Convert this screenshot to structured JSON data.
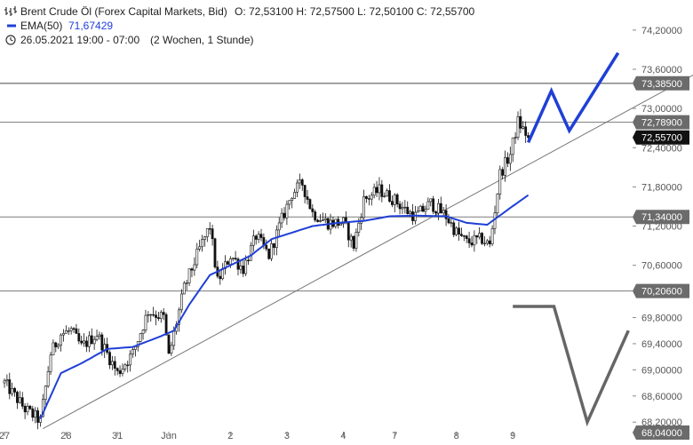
{
  "header": {
    "instrument": "Brent Crude Öl (Forex Capital Markets, Bid)",
    "ohlc": "O: 72,53100   H: 72,57500   L: 72,50100   C: 72,55700",
    "ema_label": "EMA(50)",
    "ema_value": "71,67429",
    "period": "26.05.2021 19:00 - 07:00",
    "interval": "(2 Wochen, 1 Stunde)"
  },
  "colors": {
    "ema": "#1f3fd6",
    "level_label": "#6b6b6b",
    "current_label": "#111111",
    "trendline": "#777777",
    "scenario_up": "#1f3fd6",
    "scenario_down": "#666666"
  },
  "chart_data": {
    "type": "candlestick",
    "title": "Brent Crude Öl (Forex Capital Markets, Bid)",
    "ylim": [
      68.04,
      74.3
    ],
    "y_ticks": [
      "74,20000",
      "73,60000",
      "73,00000",
      "72,40000",
      "71,80000",
      "71,20000",
      "70,60000",
      "69,80000",
      "69,40000",
      "69,00000",
      "68,60000",
      "68,20000"
    ],
    "y_tick_values": [
      74.2,
      73.6,
      73.0,
      72.4,
      71.8,
      71.2,
      70.6,
      69.8,
      69.4,
      69.0,
      68.6,
      68.2
    ],
    "x_ticks": [
      "27",
      "28",
      "31",
      "Jun",
      "2",
      "3",
      "4",
      "7",
      "8",
      "9"
    ],
    "x_tick_index": [
      0,
      24,
      44,
      64,
      88,
      110,
      132,
      152,
      176,
      198
    ],
    "n_bars": 204,
    "levels": [
      {
        "value": 73.385,
        "label": "73,38500"
      },
      {
        "value": 72.789,
        "label": "72,78900"
      },
      {
        "value": 71.34,
        "label": "71,34000"
      },
      {
        "value": 70.206,
        "label": "70,20600"
      },
      {
        "value": 68.04,
        "label": "68,04000"
      }
    ],
    "current_price": {
      "value": 72.557,
      "label": "72,55700"
    },
    "ema_last": 71.67429,
    "trendline": {
      "from": [
        15,
        68.1
      ],
      "to": [
        270,
        73.55
      ]
    },
    "scenario_up": [
      [
        204,
        72.48
      ],
      [
        213,
        73.27
      ],
      [
        220,
        72.66
      ],
      [
        239,
        73.85
      ]
    ],
    "scenario_down": [
      [
        198,
        69.97
      ],
      [
        214,
        69.97
      ],
      [
        227,
        68.2
      ],
      [
        243,
        69.6
      ]
    ],
    "anchors_close": [
      [
        0,
        68.8
      ],
      [
        8,
        68.4
      ],
      [
        14,
        68.22
      ],
      [
        18,
        69.25
      ],
      [
        22,
        69.55
      ],
      [
        26,
        69.6
      ],
      [
        30,
        69.35
      ],
      [
        36,
        69.55
      ],
      [
        44,
        68.95
      ],
      [
        50,
        69.25
      ],
      [
        56,
        69.9
      ],
      [
        62,
        69.8
      ],
      [
        64,
        69.2
      ],
      [
        70,
        70.25
      ],
      [
        76,
        70.85
      ],
      [
        80,
        71.2
      ],
      [
        83,
        70.35
      ],
      [
        88,
        70.75
      ],
      [
        93,
        70.55
      ],
      [
        98,
        71.05
      ],
      [
        103,
        70.75
      ],
      [
        108,
        71.3
      ],
      [
        112,
        71.7
      ],
      [
        116,
        71.85
      ],
      [
        120,
        71.4
      ],
      [
        126,
        71.25
      ],
      [
        132,
        71.25
      ],
      [
        136,
        70.9
      ],
      [
        140,
        71.6
      ],
      [
        146,
        71.75
      ],
      [
        152,
        71.6
      ],
      [
        156,
        71.45
      ],
      [
        160,
        71.35
      ],
      [
        166,
        71.55
      ],
      [
        172,
        71.35
      ],
      [
        176,
        71.1
      ],
      [
        180,
        70.95
      ],
      [
        186,
        71.0
      ],
      [
        189,
        70.9
      ],
      [
        193,
        72.0
      ],
      [
        197,
        72.3
      ],
      [
        200,
        72.8
      ],
      [
        204,
        72.557
      ]
    ],
    "ema_anchors": [
      [
        14,
        68.25
      ],
      [
        22,
        68.95
      ],
      [
        30,
        69.1
      ],
      [
        40,
        69.32
      ],
      [
        50,
        69.35
      ],
      [
        60,
        69.5
      ],
      [
        66,
        69.6
      ],
      [
        72,
        70.0
      ],
      [
        80,
        70.45
      ],
      [
        88,
        70.6
      ],
      [
        96,
        70.75
      ],
      [
        104,
        71.0
      ],
      [
        112,
        71.1
      ],
      [
        120,
        71.2
      ],
      [
        130,
        71.25
      ],
      [
        140,
        71.28
      ],
      [
        150,
        71.35
      ],
      [
        160,
        71.36
      ],
      [
        172,
        71.35
      ],
      [
        180,
        71.25
      ],
      [
        188,
        71.22
      ],
      [
        196,
        71.45
      ],
      [
        204,
        71.67429
      ]
    ]
  }
}
